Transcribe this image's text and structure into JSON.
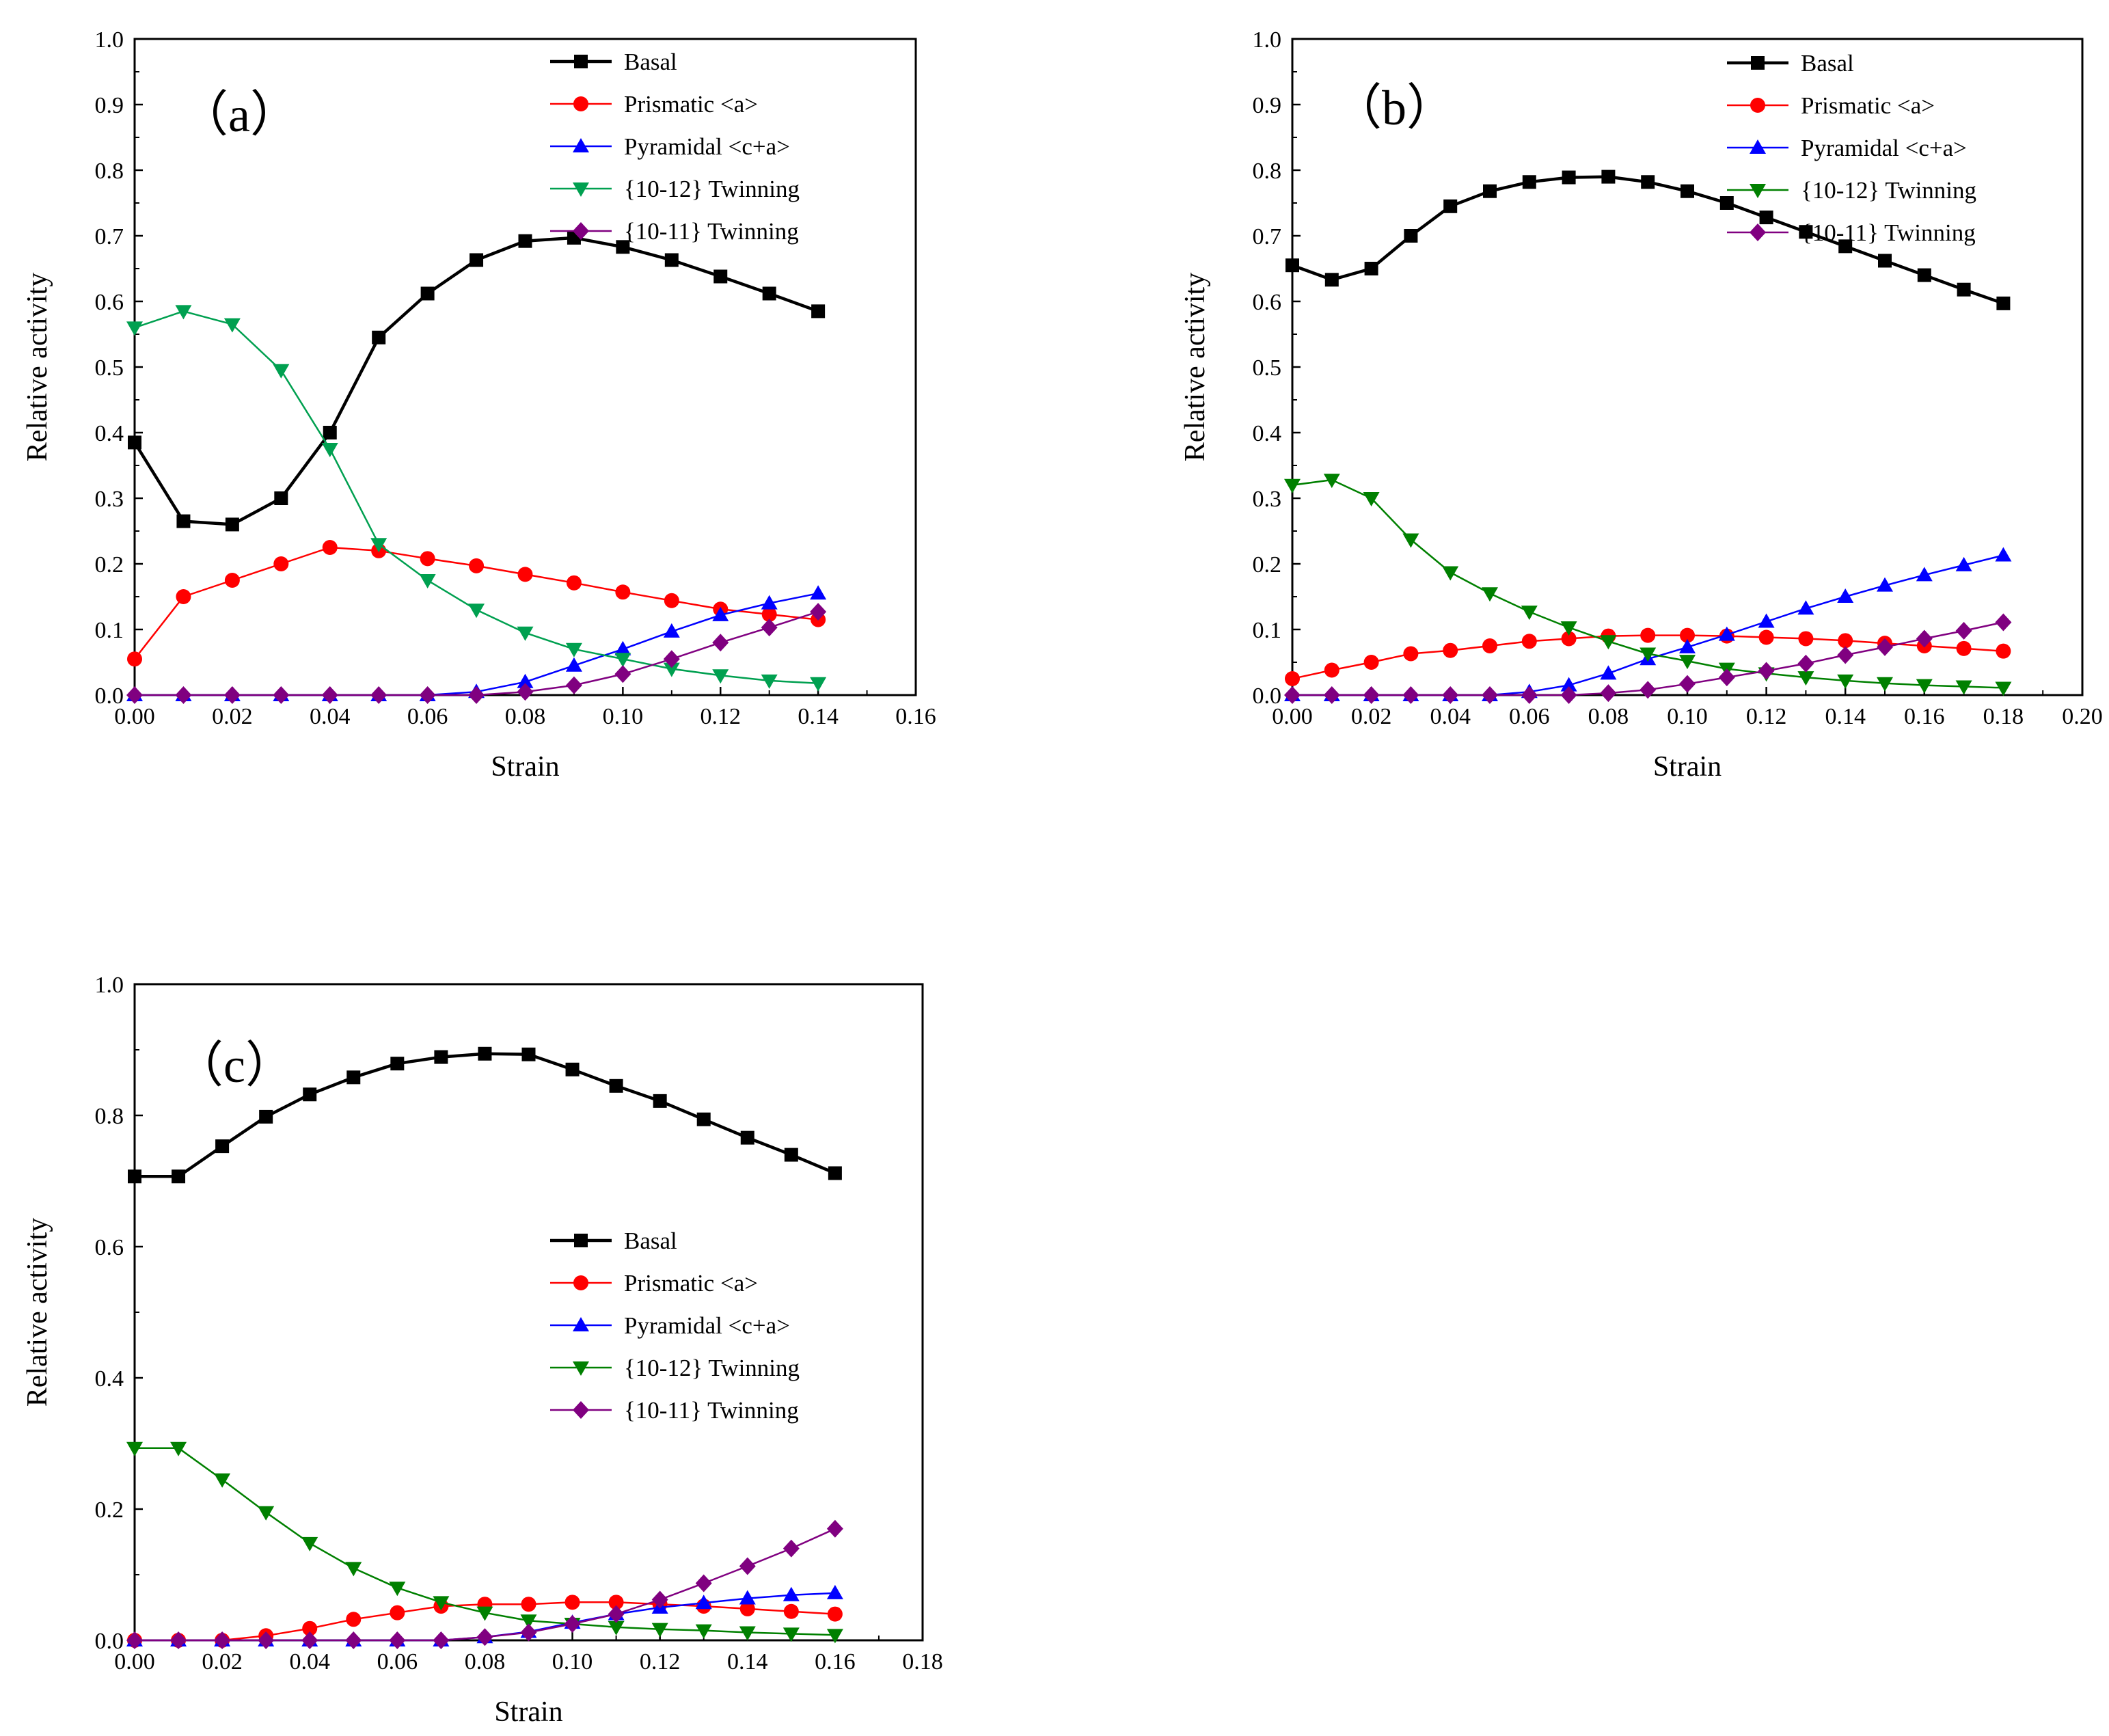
{
  "chart_data": [
    {
      "type": "line",
      "panel_label": "（a）",
      "xlabel": "Strain",
      "ylabel": "Relative activity",
      "xlim": [
        0,
        0.16
      ],
      "ylim": [
        0,
        1.0
      ],
      "xticks": [
        "0.00",
        "0.02",
        "0.04",
        "0.06",
        "0.08",
        "0.10",
        "0.12",
        "0.14",
        "0.16"
      ],
      "yticks": [
        "0.0",
        "0.1",
        "0.2",
        "0.3",
        "0.4",
        "0.5",
        "0.6",
        "0.7",
        "0.8",
        "0.9",
        "1.0"
      ],
      "xtick_values": [
        0,
        0.02,
        0.04,
        0.06,
        0.08,
        0.1,
        0.12,
        0.14,
        0.16
      ],
      "ytick_values": [
        0,
        0.1,
        0.2,
        0.3,
        0.4,
        0.5,
        0.6,
        0.7,
        0.8,
        0.9,
        1.0
      ],
      "legend_position": "top-right",
      "x": [
        0.0,
        0.01,
        0.02,
        0.03,
        0.04,
        0.05,
        0.06,
        0.07,
        0.08,
        0.09,
        0.1,
        0.11,
        0.12,
        0.13,
        0.14
      ],
      "series": [
        {
          "name": "Basal",
          "color": "#000000",
          "marker": "square",
          "values": [
            0.385,
            0.265,
            0.26,
            0.3,
            0.4,
            0.545,
            0.612,
            0.663,
            0.692,
            0.697,
            0.683,
            0.663,
            0.638,
            0.612,
            0.585
          ]
        },
        {
          "name": "Prismatic <a>",
          "color": "#ff0000",
          "marker": "circle",
          "values": [
            0.055,
            0.15,
            0.175,
            0.2,
            0.225,
            0.22,
            0.208,
            0.197,
            0.184,
            0.171,
            0.157,
            0.144,
            0.131,
            0.123,
            0.115
          ]
        },
        {
          "name": "Pyramidal <c+a>",
          "color": "#0000ff",
          "marker": "triangle-up",
          "values": [
            0,
            0,
            0,
            0,
            0,
            0,
            0,
            0.005,
            0.02,
            0.045,
            0.07,
            0.097,
            0.122,
            0.14,
            0.155
          ]
        },
        {
          "name": "{10-12} Twinning",
          "color": "#00a050",
          "marker": "triangle-down",
          "values": [
            0.56,
            0.585,
            0.565,
            0.495,
            0.375,
            0.23,
            0.175,
            0.13,
            0.095,
            0.07,
            0.055,
            0.04,
            0.03,
            0.022,
            0.018
          ]
        },
        {
          "name": "{10-11} Twinning",
          "color": "#800080",
          "marker": "diamond",
          "values": [
            0,
            0,
            0,
            0,
            0,
            0,
            0,
            0,
            0.005,
            0.015,
            0.032,
            0.055,
            0.08,
            0.103,
            0.127
          ]
        }
      ]
    },
    {
      "type": "line",
      "panel_label": "（b）",
      "xlabel": "Strain",
      "ylabel": "Relative activity",
      "xlim": [
        0,
        0.2
      ],
      "ylim": [
        0,
        1.0
      ],
      "xticks": [
        "0.00",
        "0.02",
        "0.04",
        "0.06",
        "0.08",
        "0.10",
        "0.12",
        "0.14",
        "0.16",
        "0.18",
        "0.20"
      ],
      "yticks": [
        "0.0",
        "0.1",
        "0.2",
        "0.3",
        "0.4",
        "0.5",
        "0.6",
        "0.7",
        "0.8",
        "0.9",
        "1.0"
      ],
      "xtick_values": [
        0,
        0.02,
        0.04,
        0.06,
        0.08,
        0.1,
        0.12,
        0.14,
        0.16,
        0.18,
        0.2
      ],
      "ytick_values": [
        0,
        0.1,
        0.2,
        0.3,
        0.4,
        0.5,
        0.6,
        0.7,
        0.8,
        0.9,
        1.0
      ],
      "legend_position": "top-right",
      "x": [
        0.0,
        0.01,
        0.02,
        0.03,
        0.04,
        0.05,
        0.06,
        0.07,
        0.08,
        0.09,
        0.1,
        0.11,
        0.12,
        0.13,
        0.14,
        0.15,
        0.16,
        0.17,
        0.18
      ],
      "series": [
        {
          "name": "Basal",
          "color": "#000000",
          "marker": "square",
          "values": [
            0.655,
            0.633,
            0.65,
            0.7,
            0.745,
            0.768,
            0.782,
            0.789,
            0.79,
            0.782,
            0.768,
            0.75,
            0.728,
            0.706,
            0.684,
            0.662,
            0.64,
            0.618,
            0.597
          ]
        },
        {
          "name": "Prismatic <a>",
          "color": "#ff0000",
          "marker": "circle",
          "values": [
            0.025,
            0.038,
            0.05,
            0.063,
            0.068,
            0.075,
            0.082,
            0.086,
            0.09,
            0.091,
            0.091,
            0.09,
            0.088,
            0.086,
            0.083,
            0.079,
            0.075,
            0.071,
            0.067
          ]
        },
        {
          "name": "Pyramidal <c+a>",
          "color": "#0000ff",
          "marker": "triangle-up",
          "values": [
            0,
            0,
            0,
            0,
            0,
            0,
            0.005,
            0.015,
            0.033,
            0.055,
            0.073,
            0.092,
            0.112,
            0.132,
            0.15,
            0.167,
            0.183,
            0.198,
            0.213
          ]
        },
        {
          "name": "{10-12} Twinning",
          "color": "#008000",
          "marker": "triangle-down",
          "values": [
            0.32,
            0.328,
            0.3,
            0.237,
            0.187,
            0.155,
            0.127,
            0.103,
            0.082,
            0.063,
            0.052,
            0.04,
            0.033,
            0.027,
            0.022,
            0.018,
            0.015,
            0.013,
            0.011
          ]
        },
        {
          "name": "{10-11} Twinning",
          "color": "#800080",
          "marker": "diamond",
          "values": [
            0,
            0,
            0,
            0,
            0,
            0,
            0,
            0,
            0.003,
            0.008,
            0.017,
            0.027,
            0.037,
            0.048,
            0.061,
            0.073,
            0.086,
            0.098,
            0.111
          ]
        }
      ]
    },
    {
      "type": "line",
      "panel_label": "（c）",
      "xlabel": "Strain",
      "ylabel": "Relative activity",
      "xlim": [
        0,
        0.18
      ],
      "ylim": [
        0,
        1.0
      ],
      "xticks": [
        "0.00",
        "0.02",
        "0.04",
        "0.06",
        "0.08",
        "0.10",
        "0.12",
        "0.14",
        "0.16",
        "0.18"
      ],
      "yticks": [
        "0.0",
        "0.2",
        "0.4",
        "0.6",
        "0.8",
        "1.0"
      ],
      "xtick_values": [
        0,
        0.02,
        0.04,
        0.06,
        0.08,
        0.1,
        0.12,
        0.14,
        0.16,
        0.18
      ],
      "ytick_values": [
        0,
        0.2,
        0.4,
        0.6,
        0.8,
        1.0
      ],
      "legend_position": "center-right",
      "x": [
        0.0,
        0.01,
        0.02,
        0.03,
        0.04,
        0.05,
        0.06,
        0.07,
        0.08,
        0.09,
        0.1,
        0.11,
        0.12,
        0.13,
        0.14,
        0.15,
        0.16
      ],
      "series": [
        {
          "name": "Basal",
          "color": "#000000",
          "marker": "square",
          "values": [
            0.707,
            0.707,
            0.753,
            0.798,
            0.832,
            0.858,
            0.879,
            0.889,
            0.894,
            0.893,
            0.87,
            0.845,
            0.822,
            0.794,
            0.766,
            0.74,
            0.712
          ]
        },
        {
          "name": "Prismatic <a>",
          "color": "#ff0000",
          "marker": "circle",
          "values": [
            0,
            0,
            0,
            0.007,
            0.018,
            0.032,
            0.042,
            0.052,
            0.055,
            0.055,
            0.058,
            0.058,
            0.055,
            0.052,
            0.048,
            0.044,
            0.04
          ]
        },
        {
          "name": "Pyramidal <c+a>",
          "color": "#0000ff",
          "marker": "triangle-up",
          "values": [
            0,
            0,
            0,
            0,
            0,
            0,
            0,
            0,
            0.005,
            0.013,
            0.027,
            0.04,
            0.05,
            0.057,
            0.064,
            0.069,
            0.072
          ]
        },
        {
          "name": "{10-12} Twinning",
          "color": "#008000",
          "marker": "triangle-down",
          "values": [
            0.293,
            0.293,
            0.245,
            0.195,
            0.148,
            0.11,
            0.08,
            0.058,
            0.042,
            0.03,
            0.025,
            0.02,
            0.017,
            0.015,
            0.012,
            0.01,
            0.008
          ]
        },
        {
          "name": "{10-11} Twinning",
          "color": "#800080",
          "marker": "diamond",
          "values": [
            0,
            0,
            0,
            0,
            0,
            0,
            0,
            0,
            0.005,
            0.012,
            0.025,
            0.04,
            0.062,
            0.087,
            0.113,
            0.14,
            0.17
          ]
        }
      ]
    }
  ]
}
